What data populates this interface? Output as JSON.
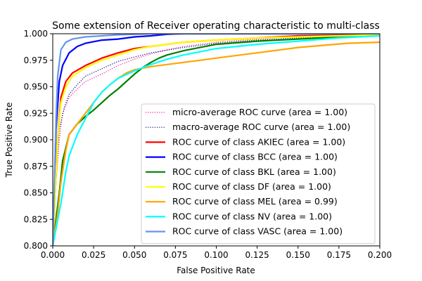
{
  "chart_data": {
    "type": "line",
    "title": "Some extension of Receiver operating characteristic to multi-class",
    "xlabel": "False Positive Rate",
    "ylabel": "True Positive Rate",
    "xlim": [
      0.0,
      0.2
    ],
    "ylim": [
      0.8,
      1.0
    ],
    "x_ticks": [
      "0.000",
      "0.025",
      "0.050",
      "0.075",
      "0.100",
      "0.125",
      "0.150",
      "0.175",
      "0.200"
    ],
    "y_ticks": [
      "0.800",
      "0.825",
      "0.850",
      "0.875",
      "0.900",
      "0.925",
      "0.950",
      "0.975",
      "1.000"
    ],
    "grid": false,
    "legend_position": "lower-right",
    "series": [
      {
        "name": "micro-average ROC curve (area = 1.00)",
        "color": "#ff1493",
        "style": "dotted",
        "points": [
          [
            0.0,
            0.8
          ],
          [
            0.002,
            0.86
          ],
          [
            0.004,
            0.9
          ],
          [
            0.006,
            0.925
          ],
          [
            0.01,
            0.94
          ],
          [
            0.015,
            0.948
          ],
          [
            0.02,
            0.955
          ],
          [
            0.03,
            0.962
          ],
          [
            0.04,
            0.97
          ],
          [
            0.05,
            0.976
          ],
          [
            0.06,
            0.981
          ],
          [
            0.07,
            0.985
          ],
          [
            0.08,
            0.988
          ],
          [
            0.1,
            0.992
          ],
          [
            0.125,
            0.995
          ],
          [
            0.15,
            0.997
          ],
          [
            0.175,
            0.998
          ],
          [
            0.2,
            0.999
          ]
        ]
      },
      {
        "name": "macro-average ROC curve (area = 1.00)",
        "color": "#000080",
        "style": "dotted",
        "points": [
          [
            0.0,
            0.8
          ],
          [
            0.002,
            0.87
          ],
          [
            0.004,
            0.91
          ],
          [
            0.007,
            0.93
          ],
          [
            0.01,
            0.943
          ],
          [
            0.015,
            0.952
          ],
          [
            0.02,
            0.96
          ],
          [
            0.03,
            0.967
          ],
          [
            0.04,
            0.974
          ],
          [
            0.05,
            0.978
          ],
          [
            0.06,
            0.982
          ],
          [
            0.08,
            0.987
          ],
          [
            0.1,
            0.991
          ],
          [
            0.125,
            0.994
          ],
          [
            0.15,
            0.996
          ],
          [
            0.175,
            0.998
          ],
          [
            0.2,
            0.999
          ]
        ]
      },
      {
        "name": "ROC curve of class AKIEC (area = 1.00)",
        "color": "#ff0000",
        "style": "solid",
        "points": [
          [
            0.0,
            0.8
          ],
          [
            0.003,
            0.9
          ],
          [
            0.005,
            0.94
          ],
          [
            0.008,
            0.955
          ],
          [
            0.012,
            0.963
          ],
          [
            0.02,
            0.97
          ],
          [
            0.03,
            0.977
          ],
          [
            0.04,
            0.982
          ],
          [
            0.05,
            0.986
          ],
          [
            0.06,
            0.988
          ],
          [
            0.07,
            0.99
          ],
          [
            0.08,
            0.992
          ],
          [
            0.1,
            0.994
          ],
          [
            0.125,
            0.996
          ],
          [
            0.15,
            0.998
          ],
          [
            0.2,
            0.999
          ]
        ]
      },
      {
        "name": "ROC curve of class BCC (area = 1.00)",
        "color": "#0000ff",
        "style": "solid",
        "points": [
          [
            0.0,
            0.8
          ],
          [
            0.002,
            0.91
          ],
          [
            0.004,
            0.955
          ],
          [
            0.006,
            0.97
          ],
          [
            0.01,
            0.982
          ],
          [
            0.015,
            0.988
          ],
          [
            0.02,
            0.991
          ],
          [
            0.03,
            0.994
          ],
          [
            0.04,
            0.995
          ],
          [
            0.05,
            0.997
          ],
          [
            0.06,
            0.998
          ],
          [
            0.07,
            0.9995
          ],
          [
            0.08,
            1.0
          ],
          [
            0.2,
            1.0
          ]
        ]
      },
      {
        "name": "ROC curve of class BKL (area = 1.00)",
        "color": "#008000",
        "style": "solid",
        "points": [
          [
            0.0,
            0.8
          ],
          [
            0.004,
            0.85
          ],
          [
            0.006,
            0.88
          ],
          [
            0.01,
            0.905
          ],
          [
            0.015,
            0.915
          ],
          [
            0.02,
            0.922
          ],
          [
            0.025,
            0.928
          ],
          [
            0.03,
            0.935
          ],
          [
            0.035,
            0.942
          ],
          [
            0.04,
            0.948
          ],
          [
            0.045,
            0.955
          ],
          [
            0.05,
            0.962
          ],
          [
            0.055,
            0.968
          ],
          [
            0.06,
            0.973
          ],
          [
            0.065,
            0.977
          ],
          [
            0.07,
            0.98
          ],
          [
            0.08,
            0.984
          ],
          [
            0.09,
            0.987
          ],
          [
            0.1,
            0.99
          ],
          [
            0.125,
            0.993
          ],
          [
            0.15,
            0.995
          ],
          [
            0.175,
            0.997
          ],
          [
            0.2,
            0.999
          ]
        ]
      },
      {
        "name": "ROC curve of class DF (area = 1.00)",
        "color": "#ffff00",
        "style": "solid",
        "points": [
          [
            0.0,
            0.8
          ],
          [
            0.003,
            0.9
          ],
          [
            0.005,
            0.935
          ],
          [
            0.008,
            0.95
          ],
          [
            0.012,
            0.96
          ],
          [
            0.02,
            0.968
          ],
          [
            0.03,
            0.975
          ],
          [
            0.04,
            0.98
          ],
          [
            0.05,
            0.985
          ],
          [
            0.06,
            0.988
          ],
          [
            0.07,
            0.99
          ],
          [
            0.08,
            0.992
          ],
          [
            0.1,
            0.994
          ],
          [
            0.125,
            0.996
          ],
          [
            0.15,
            0.997
          ],
          [
            0.2,
            0.999
          ]
        ]
      },
      {
        "name": "ROC curve of class MEL (area = 0.99)",
        "color": "#ffa500",
        "style": "solid",
        "points": [
          [
            0.0,
            0.8
          ],
          [
            0.003,
            0.83
          ],
          [
            0.005,
            0.86
          ],
          [
            0.008,
            0.89
          ],
          [
            0.01,
            0.905
          ],
          [
            0.015,
            0.915
          ],
          [
            0.02,
            0.925
          ],
          [
            0.025,
            0.935
          ],
          [
            0.03,
            0.945
          ],
          [
            0.035,
            0.952
          ],
          [
            0.04,
            0.958
          ],
          [
            0.045,
            0.963
          ],
          [
            0.05,
            0.966
          ],
          [
            0.06,
            0.969
          ],
          [
            0.07,
            0.971
          ],
          [
            0.08,
            0.973
          ],
          [
            0.09,
            0.975
          ],
          [
            0.1,
            0.977
          ],
          [
            0.11,
            0.979
          ],
          [
            0.12,
            0.981
          ],
          [
            0.13,
            0.983
          ],
          [
            0.14,
            0.985
          ],
          [
            0.15,
            0.987
          ],
          [
            0.165,
            0.989
          ],
          [
            0.18,
            0.991
          ],
          [
            0.2,
            0.992
          ]
        ]
      },
      {
        "name": "ROC curve of class NV (area = 1.00)",
        "color": "#00ffff",
        "style": "solid",
        "points": [
          [
            0.0,
            0.8
          ],
          [
            0.005,
            0.84
          ],
          [
            0.008,
            0.87
          ],
          [
            0.01,
            0.885
          ],
          [
            0.015,
            0.905
          ],
          [
            0.02,
            0.92
          ],
          [
            0.025,
            0.935
          ],
          [
            0.03,
            0.945
          ],
          [
            0.035,
            0.952
          ],
          [
            0.04,
            0.958
          ],
          [
            0.05,
            0.965
          ],
          [
            0.06,
            0.971
          ],
          [
            0.07,
            0.976
          ],
          [
            0.08,
            0.98
          ],
          [
            0.09,
            0.983
          ],
          [
            0.1,
            0.986
          ],
          [
            0.125,
            0.99
          ],
          [
            0.15,
            0.993
          ],
          [
            0.175,
            0.996
          ],
          [
            0.2,
            0.998
          ]
        ]
      },
      {
        "name": "ROC curve of class VASC (area = 1.00)",
        "color": "#6495ed",
        "style": "solid",
        "points": [
          [
            0.0,
            0.8
          ],
          [
            0.002,
            0.92
          ],
          [
            0.003,
            0.96
          ],
          [
            0.005,
            0.985
          ],
          [
            0.008,
            0.992
          ],
          [
            0.012,
            0.995
          ],
          [
            0.02,
            0.997
          ],
          [
            0.03,
            0.998
          ],
          [
            0.04,
            0.999
          ],
          [
            0.06,
            1.0
          ],
          [
            0.2,
            1.0
          ]
        ]
      }
    ]
  }
}
